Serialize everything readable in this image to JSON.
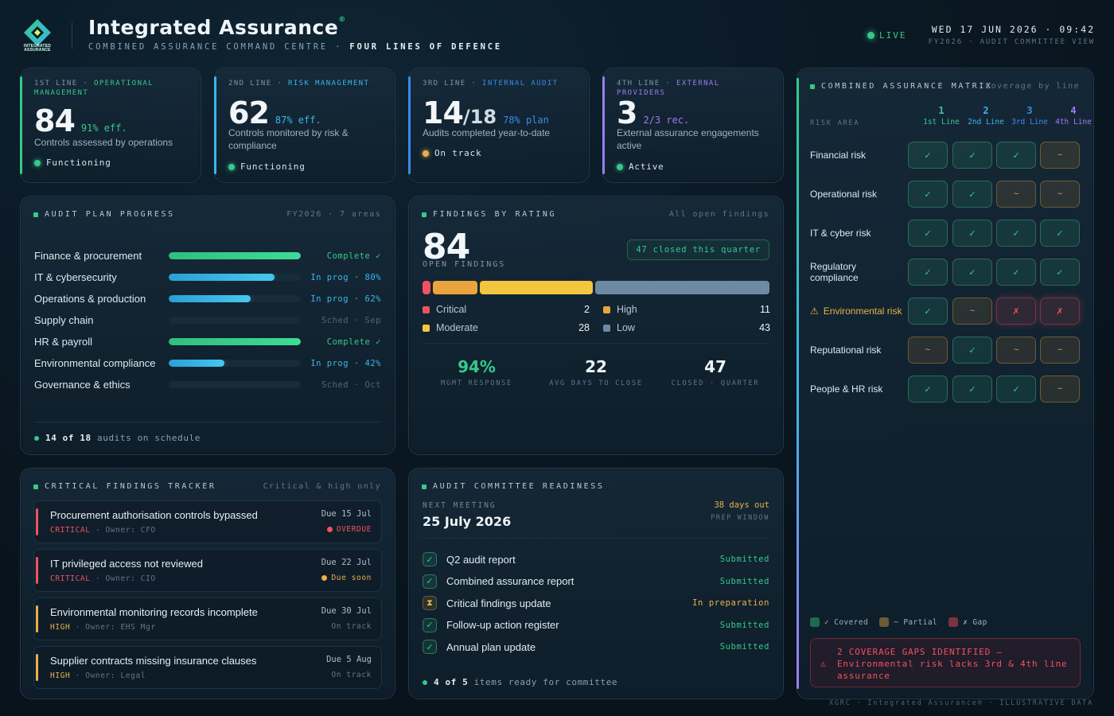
{
  "header": {
    "logo_text": "INTEGRATED ASSURANCE",
    "title": "Integrated Assurance",
    "title_mark": "®",
    "subtitle_a": "COMBINED ASSURANCE COMMAND CENTRE",
    "subtitle_sep": "·",
    "subtitle_b": "FOUR LINES OF DEFENCE",
    "live_label": "LIVE",
    "datetime": "WED 17 JUN 2026 · 09:42",
    "context": "FY2026 · AUDIT COMMITTEE VIEW"
  },
  "colors": {
    "green": "#35c98a",
    "blue": "#3ab6e8",
    "amber": "#e8b24a",
    "red": "#f0525f",
    "purple": "#9b7cf0"
  },
  "lines": [
    {
      "prefix": "1ST LINE · ",
      "name": "OPERATIONAL MANAGEMENT",
      "color": "#35c98a",
      "value": "84",
      "value_suffix": "",
      "metric": "91% eff.",
      "desc": "Controls assessed by operations",
      "status": "Functioning",
      "status_color": "#35c98a"
    },
    {
      "prefix": "2ND LINE · ",
      "name": "RISK MANAGEMENT",
      "color": "#3ab6e8",
      "value": "62",
      "value_suffix": "",
      "metric": "87% eff.",
      "desc": "Controls monitored by risk & compliance",
      "status": "Functioning",
      "status_color": "#35c98a"
    },
    {
      "prefix": "3RD LINE · ",
      "name": "INTERNAL AUDIT",
      "color": "#3a8ae8",
      "value": "14",
      "value_suffix": "/18",
      "metric": "78% plan",
      "desc": "Audits completed year-to-date",
      "status": "On track",
      "status_color": "#e8b24a"
    },
    {
      "prefix": "4TH LINE · ",
      "name": "EXTERNAL PROVIDERS",
      "color": "#9b7cf0",
      "value": "3",
      "value_suffix": "",
      "metric": "2/3 rec.",
      "desc": "External assurance engagements active",
      "status": "Active",
      "status_color": "#35c98a"
    }
  ],
  "audit_plan": {
    "title": "AUDIT PLAN PROGRESS",
    "meta": "FY2026 · 7 areas",
    "rows": [
      {
        "name": "Finance & procurement",
        "progress": 1.0,
        "status": "Complete ✓",
        "kind": "complete"
      },
      {
        "name": "IT & cybersecurity",
        "progress": 0.8,
        "status": "In prog · 80%",
        "kind": "prog"
      },
      {
        "name": "Operations & production",
        "progress": 0.62,
        "status": "In prog · 62%",
        "kind": "prog"
      },
      {
        "name": "Supply chain",
        "progress": 0,
        "status": "Sched · Sep",
        "kind": "sched"
      },
      {
        "name": "HR & payroll",
        "progress": 1.0,
        "status": "Complete ✓",
        "kind": "complete"
      },
      {
        "name": "Environmental compliance",
        "progress": 0.42,
        "status": "In prog · 42%",
        "kind": "prog"
      },
      {
        "name": "Governance & ethics",
        "progress": 0,
        "status": "Sched · Oct",
        "kind": "sched"
      }
    ],
    "footer_count": "14 of 18",
    "footer_text": "audits on schedule"
  },
  "findings": {
    "title": "FINDINGS BY RATING",
    "meta": "All open findings",
    "total": "84",
    "total_label": "OPEN FINDINGS",
    "closed_badge": "47 closed this quarter",
    "ratings": [
      {
        "name": "Critical",
        "count": 2,
        "color": "#f0525f"
      },
      {
        "name": "High",
        "count": 11,
        "color": "#eaa43e"
      },
      {
        "name": "Moderate",
        "count": 28,
        "color": "#f3c640"
      },
      {
        "name": "Low",
        "count": 43,
        "color": "#6e8aa3"
      }
    ],
    "stats": [
      {
        "value": "94%",
        "label": "MGMT RESPONSE",
        "color": "#35c98a"
      },
      {
        "value": "22",
        "label": "AVG DAYS TO CLOSE",
        "color": "#eef3f6"
      },
      {
        "value": "47",
        "label": "CLOSED · QUARTER",
        "color": "#eef3f6"
      }
    ]
  },
  "tracker": {
    "title": "CRITICAL FINDINGS TRACKER",
    "meta": "Critical & high only",
    "items": [
      {
        "title": "Procurement authorisation controls bypassed",
        "severity": "CRITICAL",
        "owner": "· Owner: CFO",
        "due": "Due 15 Jul",
        "state": "OVERDUE",
        "state_kind": "overdue"
      },
      {
        "title": "IT privileged access not reviewed",
        "severity": "CRITICAL",
        "owner": "· Owner: CIO",
        "due": "Due 22 Jul",
        "state": "Due soon",
        "state_kind": "soon"
      },
      {
        "title": "Environmental monitoring records incomplete",
        "severity": "HIGH",
        "owner": "· Owner: EHS Mgr",
        "due": "Due 30 Jul",
        "state": "On track",
        "state_kind": "ontrack"
      },
      {
        "title": "Supplier contracts missing insurance clauses",
        "severity": "HIGH",
        "owner": "· Owner: Legal",
        "due": "Due 5 Aug",
        "state": "On track",
        "state_kind": "ontrack"
      }
    ]
  },
  "readiness": {
    "title": "AUDIT COMMITTEE READINESS",
    "next_label": "NEXT MEETING",
    "date": "25 July 2026",
    "days_out": "38 days out",
    "window": "PREP WINDOW",
    "items": [
      {
        "name": "Q2 audit report",
        "status": "Submitted",
        "done": true
      },
      {
        "name": "Combined assurance report",
        "status": "Submitted",
        "done": true
      },
      {
        "name": "Critical findings update",
        "status": "In preparation",
        "done": false
      },
      {
        "name": "Follow-up action register",
        "status": "Submitted",
        "done": true
      },
      {
        "name": "Annual plan update",
        "status": "Submitted",
        "done": true
      }
    ],
    "footer_count": "4 of 5",
    "footer_text": "items ready for committee"
  },
  "matrix": {
    "title": "COMBINED ASSURANCE MATRIX",
    "meta": "Coverage by line",
    "risk_area_label": "RISK AREA",
    "columns": [
      {
        "num": "1",
        "name": "1st Line",
        "color": "#35c98a"
      },
      {
        "num": "2",
        "name": "2nd Line",
        "color": "#3ab6e8"
      },
      {
        "num": "3",
        "name": "3rd Line",
        "color": "#3a8ae8"
      },
      {
        "num": "4",
        "name": "4th Line",
        "color": "#9b7cf0"
      }
    ],
    "rows": [
      {
        "name": "Financial risk",
        "warn": false,
        "cells": [
          "c",
          "c",
          "c",
          "p"
        ]
      },
      {
        "name": "Operational risk",
        "warn": false,
        "cells": [
          "c",
          "c",
          "p",
          "p"
        ]
      },
      {
        "name": "IT & cyber risk",
        "warn": false,
        "cells": [
          "c",
          "c",
          "c",
          "c"
        ]
      },
      {
        "name": "Regulatory compliance",
        "warn": false,
        "cells": [
          "c",
          "c",
          "c",
          "c"
        ]
      },
      {
        "name": "Environmental risk",
        "warn": true,
        "cells": [
          "c",
          "p",
          "g",
          "g"
        ]
      },
      {
        "name": "Reputational risk",
        "warn": false,
        "cells": [
          "p",
          "c",
          "p",
          "p"
        ]
      },
      {
        "name": "People & HR risk",
        "warn": false,
        "cells": [
          "c",
          "c",
          "c",
          "p"
        ]
      }
    ],
    "symbols": {
      "c": "✓",
      "p": "~",
      "g": "✗"
    },
    "warn_icon": "⚠",
    "legend": [
      {
        "label": "✓ Covered",
        "kind": "c"
      },
      {
        "label": "~ Partial",
        "kind": "p"
      },
      {
        "label": "✗ Gap",
        "kind": "g"
      }
    ],
    "gap_alert": "2 COVERAGE GAPS IDENTIFIED — Environmental risk lacks 3rd & 4th line assurance"
  },
  "footer": "XGRC · Integrated Assurance® · ILLUSTRATIVE DATA"
}
